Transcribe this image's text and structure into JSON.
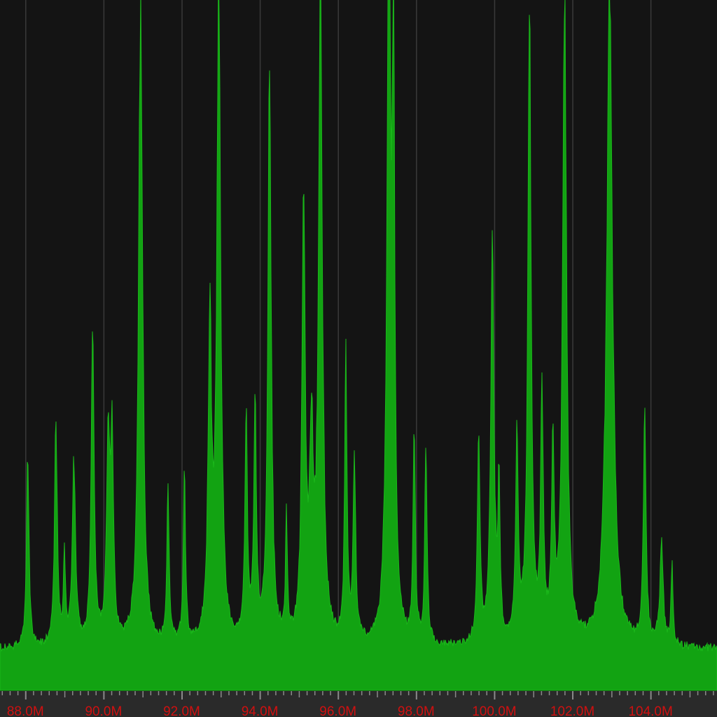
{
  "spectrum": {
    "colors": {
      "background": "#141414",
      "fill": "#12a312",
      "fill_bright": "#1bb81b",
      "grid": "#3a3a3a",
      "axis_bar": "#2a2a2a",
      "ticks": "#8a8a8a",
      "labels": "#d01010"
    },
    "x_axis": {
      "unit": "M",
      "range_mhz": [
        87.35,
        105.7
      ],
      "major_ticks": [
        {
          "mhz": 88,
          "label": "88.0M"
        },
        {
          "mhz": 90,
          "label": "90.0M"
        },
        {
          "mhz": 92,
          "label": "92.0M"
        },
        {
          "mhz": 94,
          "label": "94.0M"
        },
        {
          "mhz": 96,
          "label": "96.0M"
        },
        {
          "mhz": 98,
          "label": "98.0M"
        },
        {
          "mhz": 100,
          "label": "100.0M"
        },
        {
          "mhz": 102,
          "label": "102.0M"
        },
        {
          "mhz": 104,
          "label": "104.0M"
        }
      ],
      "minor_tick_step_mhz": 0.2
    },
    "level_scale": "relative 0-1 (top of view = 1)",
    "noise_floor": 0.06,
    "stations": [
      {
        "mhz": 88.06,
        "level": 0.29,
        "width": 0.04
      },
      {
        "mhz": 88.78,
        "level": 0.37,
        "width": 0.04
      },
      {
        "mhz": 89.0,
        "level": 0.13,
        "width": 0.03
      },
      {
        "mhz": 89.24,
        "level": 0.28,
        "width": 0.05
      },
      {
        "mhz": 89.72,
        "level": 0.48,
        "width": 0.045
      },
      {
        "mhz": 90.12,
        "level": 0.33,
        "width": 0.05
      },
      {
        "mhz": 90.22,
        "level": 0.3,
        "width": 0.04
      },
      {
        "mhz": 90.95,
        "level": 1.02,
        "width": 0.06
      },
      {
        "mhz": 91.65,
        "level": 0.24,
        "width": 0.035
      },
      {
        "mhz": 92.07,
        "level": 0.26,
        "width": 0.035
      },
      {
        "mhz": 92.72,
        "level": 0.49,
        "width": 0.05
      },
      {
        "mhz": 92.95,
        "level": 1.02,
        "width": 0.06
      },
      {
        "mhz": 93.65,
        "level": 0.34,
        "width": 0.04
      },
      {
        "mhz": 93.88,
        "level": 0.35,
        "width": 0.04
      },
      {
        "mhz": 94.25,
        "level": 0.9,
        "width": 0.05
      },
      {
        "mhz": 94.68,
        "level": 0.18,
        "width": 0.03
      },
      {
        "mhz": 95.12,
        "level": 0.68,
        "width": 0.05
      },
      {
        "mhz": 95.55,
        "level": 1.02,
        "width": 0.06
      },
      {
        "mhz": 95.32,
        "level": 0.3,
        "width": 0.05
      },
      {
        "mhz": 96.2,
        "level": 0.44,
        "width": 0.035
      },
      {
        "mhz": 96.42,
        "level": 0.28,
        "width": 0.04
      },
      {
        "mhz": 97.3,
        "level": 1.02,
        "width": 0.06
      },
      {
        "mhz": 97.42,
        "level": 0.86,
        "width": 0.04
      },
      {
        "mhz": 97.95,
        "level": 0.33,
        "width": 0.035
      },
      {
        "mhz": 98.25,
        "level": 0.3,
        "width": 0.035
      },
      {
        "mhz": 99.6,
        "level": 0.33,
        "width": 0.04
      },
      {
        "mhz": 99.95,
        "level": 0.63,
        "width": 0.05
      },
      {
        "mhz": 100.12,
        "level": 0.24,
        "width": 0.03
      },
      {
        "mhz": 100.58,
        "level": 0.31,
        "width": 0.04
      },
      {
        "mhz": 100.9,
        "level": 0.99,
        "width": 0.05
      },
      {
        "mhz": 101.22,
        "level": 0.38,
        "width": 0.04
      },
      {
        "mhz": 101.5,
        "level": 0.3,
        "width": 0.04
      },
      {
        "mhz": 101.8,
        "level": 1.02,
        "width": 0.06
      },
      {
        "mhz": 102.95,
        "level": 1.02,
        "width": 0.09
      },
      {
        "mhz": 103.85,
        "level": 0.36,
        "width": 0.04
      },
      {
        "mhz": 104.28,
        "level": 0.16,
        "width": 0.05
      },
      {
        "mhz": 104.55,
        "level": 0.12,
        "width": 0.03
      }
    ]
  }
}
